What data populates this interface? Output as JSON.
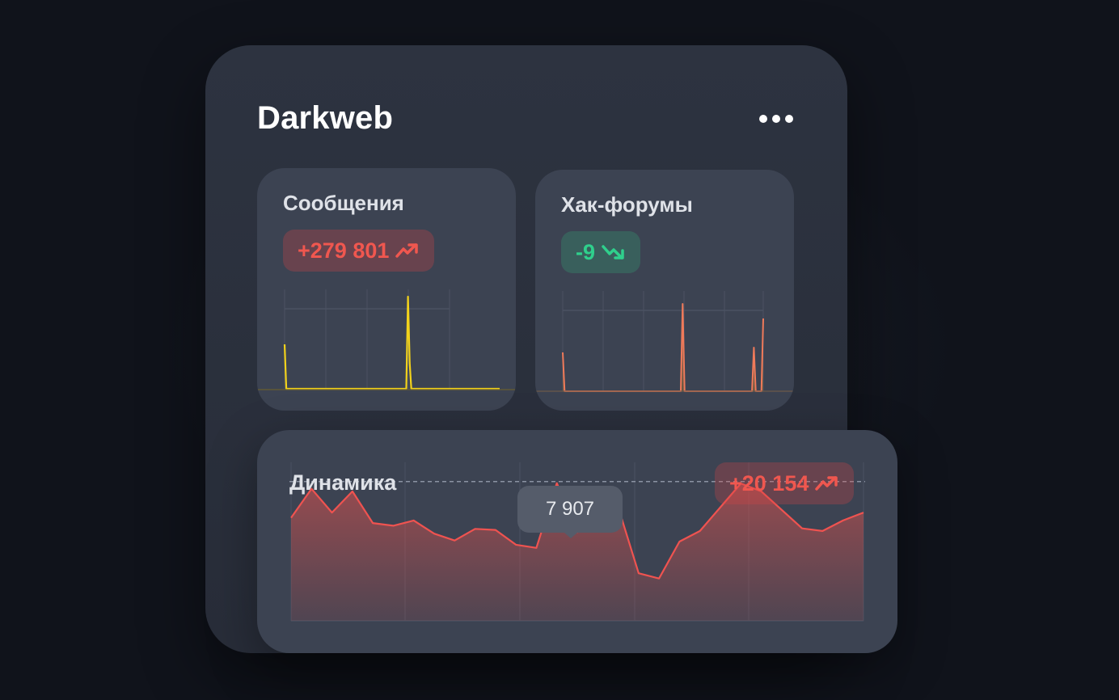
{
  "widget": {
    "title": "Darkweb",
    "menu_icon": "more-dots-icon"
  },
  "cards": [
    {
      "title": "Сообщения",
      "delta": "+279 801",
      "trend": "up",
      "trend_icon": "trend-up-icon",
      "color": "#f0574f",
      "line_color": "#f2d21b",
      "chart_data": {
        "type": "line",
        "values": [
          56,
          1,
          1,
          1,
          1,
          1,
          1,
          1,
          1,
          1,
          1,
          1,
          1,
          1,
          1,
          1,
          1,
          1,
          1,
          1,
          1,
          1,
          1,
          1,
          1,
          1,
          1,
          1,
          1,
          1,
          1,
          1,
          1,
          1,
          1,
          1,
          1,
          1,
          1,
          1,
          1,
          1,
          1,
          1,
          1,
          1,
          1,
          1,
          1,
          1,
          1,
          1,
          1,
          1,
          1,
          1,
          1,
          1,
          1,
          1,
          1,
          1,
          1,
          1,
          1,
          1,
          1,
          1,
          1,
          1,
          1,
          1,
          1,
          1,
          115,
          33,
          1,
          1,
          1,
          1,
          1,
          1,
          1,
          1,
          1,
          1,
          1,
          1,
          1,
          1,
          1,
          1,
          1,
          1,
          1,
          1,
          1,
          1,
          1,
          1,
          1,
          1,
          1,
          1,
          1,
          1,
          1,
          1,
          1,
          1,
          1,
          1,
          1,
          1,
          1,
          1,
          1,
          1,
          1,
          1,
          1,
          1,
          1,
          1,
          1,
          1,
          1,
          1,
          1,
          1
        ],
        "ylim": [
          0,
          120
        ]
      }
    },
    {
      "title": "Хак-форумы",
      "delta": "-9",
      "trend": "down",
      "trend_icon": "trend-down-icon",
      "color": "#2fd08c",
      "line_color": "#ef7a5a",
      "chart_data": {
        "type": "area",
        "values": [
          48,
          0,
          0,
          0,
          0,
          0,
          0,
          0,
          0,
          0,
          0,
          0,
          0,
          0,
          0,
          0,
          0,
          0,
          0,
          0,
          0,
          0,
          0,
          0,
          0,
          0,
          0,
          0,
          0,
          0,
          0,
          0,
          0,
          0,
          0,
          0,
          0,
          0,
          0,
          0,
          0,
          0,
          0,
          0,
          0,
          0,
          0,
          0,
          0,
          0,
          0,
          0,
          0,
          0,
          0,
          0,
          0,
          0,
          0,
          0,
          0,
          0,
          0,
          0,
          108,
          0,
          0,
          0,
          0,
          0,
          0,
          0,
          0,
          0,
          0,
          0,
          0,
          0,
          0,
          0,
          0,
          0,
          0,
          0,
          0,
          0,
          0,
          0,
          0,
          0,
          0,
          0,
          0,
          0,
          0,
          0,
          0,
          0,
          0,
          0,
          0,
          0,
          54,
          0,
          0,
          0,
          0,
          90
        ],
        "ylim": [
          0,
          120
        ]
      }
    }
  ],
  "dynamics": {
    "title": "Динамика",
    "delta": "+20 154",
    "trend": "up",
    "trend_icon": "trend-up-icon",
    "tooltip_value": "7 907",
    "line_color": "#ef5350",
    "chart_data": {
      "type": "area",
      "values": [
        7250,
        7800,
        7350,
        7750,
        7150,
        7100,
        7200,
        6950,
        6820,
        7040,
        7020,
        6740,
        6680,
        7907,
        6980,
        7500,
        7450,
        6200,
        6100,
        6800,
        7000,
        7450,
        7900,
        7750,
        7400,
        7050,
        7000,
        7200,
        7350
      ],
      "ylim": [
        5300,
        8300
      ],
      "reference_line": 7907
    }
  }
}
